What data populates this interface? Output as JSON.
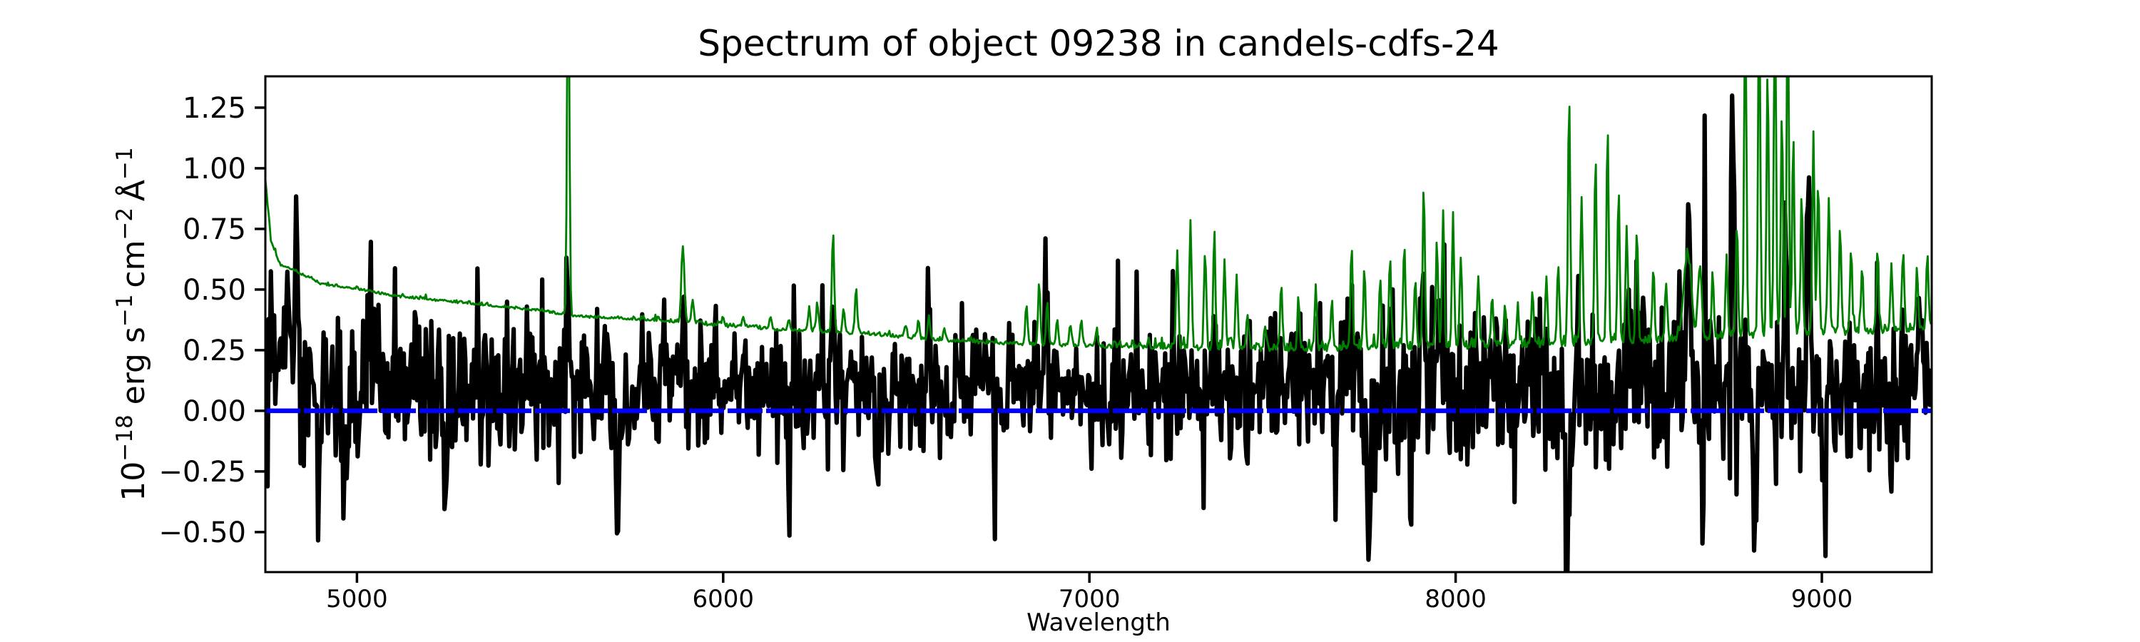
{
  "figure": {
    "background": "#ffffff",
    "frame_color": "#000000"
  },
  "chart_data": {
    "type": "line",
    "title": "Spectrum of object 09238 in candels-cdfs-24",
    "xlabel": "Wavelength",
    "ylabel": "10−18 erg s−1 cm−2 Å−1",
    "ylabel_parts": [
      {
        "text": "10"
      },
      {
        "text": "−18",
        "sup": true
      },
      {
        "text": " erg s"
      },
      {
        "text": "−1",
        "sup": true
      },
      {
        "text": " cm"
      },
      {
        "text": "−2",
        "sup": true
      },
      {
        "text": " Å"
      },
      {
        "text": "−1",
        "sup": true
      }
    ],
    "xlim": [
      4750,
      9300
    ],
    "ylim": [
      -0.665,
      1.379
    ],
    "grid": false,
    "legend": null,
    "x_ticks": [
      {
        "value": 5000,
        "label": "5000"
      },
      {
        "value": 6000,
        "label": "6000"
      },
      {
        "value": 7000,
        "label": "7000"
      },
      {
        "value": 8000,
        "label": "8000"
      },
      {
        "value": 9000,
        "label": "9000"
      }
    ],
    "y_ticks": [
      {
        "value": 1.25,
        "label": "1.25"
      },
      {
        "value": 1.0,
        "label": "1.00"
      },
      {
        "value": 0.75,
        "label": "0.75"
      },
      {
        "value": 0.5,
        "label": "0.50"
      },
      {
        "value": 0.25,
        "label": "0.25"
      },
      {
        "value": 0.0,
        "label": "0.00"
      },
      {
        "value": -0.25,
        "label": "−0.25"
      },
      {
        "value": -0.5,
        "label": "−0.50"
      }
    ],
    "series": [
      {
        "name": "flux-spectrum",
        "color": "#000000",
        "linewidth": 6.2,
        "style": "solid",
        "representation": "noisy-spectrum",
        "sample_step_angstrom": 3,
        "mean_anchors": [
          [
            4750,
            0.13
          ],
          [
            5000,
            0.1
          ],
          [
            5500,
            0.08
          ],
          [
            6000,
            0.07
          ],
          [
            6500,
            0.075
          ],
          [
            7000,
            0.08
          ],
          [
            7500,
            0.085
          ],
          [
            8000,
            0.09
          ],
          [
            8500,
            0.09
          ],
          [
            9000,
            0.09
          ],
          [
            9300,
            0.07
          ]
        ],
        "sigma_anchors": [
          [
            4750,
            0.21
          ],
          [
            4900,
            0.19
          ],
          [
            5100,
            0.17
          ],
          [
            5400,
            0.15
          ],
          [
            5800,
            0.135
          ],
          [
            6200,
            0.125
          ],
          [
            6800,
            0.125
          ],
          [
            7200,
            0.135
          ],
          [
            7600,
            0.15
          ],
          [
            8000,
            0.16
          ],
          [
            8400,
            0.17
          ],
          [
            8800,
            0.18
          ],
          [
            9300,
            0.18
          ]
        ],
        "features": [
          [
            4770,
            0.45,
            4
          ],
          [
            4813,
            0.52,
            4
          ],
          [
            4836,
            0.62,
            4
          ],
          [
            4896,
            -0.46,
            4
          ],
          [
            5037,
            0.66,
            4
          ],
          [
            5100,
            0.45,
            4
          ],
          [
            5240,
            -0.46,
            4
          ],
          [
            5330,
            0.45,
            4
          ],
          [
            5575,
            0.45,
            4
          ],
          [
            5712,
            -0.55,
            4
          ],
          [
            5890,
            0.45,
            4
          ],
          [
            6300,
            0.48,
            4
          ],
          [
            6420,
            -0.4,
            4
          ],
          [
            6560,
            0.45,
            4
          ],
          [
            6880,
            0.42,
            4
          ],
          [
            7340,
            0.45,
            4
          ],
          [
            7762,
            -0.46,
            4
          ],
          [
            7910,
            0.7,
            5
          ],
          [
            7952,
            0.5,
            4
          ],
          [
            8305,
            -0.6,
            4
          ],
          [
            8470,
            0.55,
            4
          ],
          [
            8637,
            0.88,
            6
          ],
          [
            8673,
            -0.42,
            4
          ],
          [
            8756,
            1.22,
            4
          ],
          [
            8817,
            -0.42,
            4
          ],
          [
            8900,
            0.62,
            5
          ],
          [
            8965,
            0.57,
            5
          ],
          [
            9010,
            -0.43,
            4
          ],
          [
            9150,
            0.45,
            4
          ],
          [
            9265,
            0.55,
            4
          ]
        ]
      },
      {
        "name": "noise-spectrum",
        "color": "#008000",
        "linewidth": 2.8,
        "style": "solid",
        "representation": "continuum-plus-sky-lines",
        "sample_step_angstrom": 3,
        "continuum_anchors": [
          [
            4750,
            0.95
          ],
          [
            4765,
            0.7
          ],
          [
            4790,
            0.6
          ],
          [
            4830,
            0.575
          ],
          [
            4900,
            0.52
          ],
          [
            5000,
            0.5
          ],
          [
            5100,
            0.47
          ],
          [
            5200,
            0.455
          ],
          [
            5300,
            0.44
          ],
          [
            5400,
            0.425
          ],
          [
            5500,
            0.41
          ],
          [
            5600,
            0.385
          ],
          [
            5750,
            0.375
          ],
          [
            5900,
            0.36
          ],
          [
            6000,
            0.345
          ],
          [
            6150,
            0.33
          ],
          [
            6300,
            0.32
          ],
          [
            6450,
            0.305
          ],
          [
            6600,
            0.285
          ],
          [
            6800,
            0.27
          ],
          [
            7000,
            0.262
          ],
          [
            7200,
            0.252
          ],
          [
            7400,
            0.247
          ],
          [
            7600,
            0.242
          ],
          [
            7800,
            0.25
          ],
          [
            8000,
            0.255
          ],
          [
            8200,
            0.26
          ],
          [
            8400,
            0.27
          ],
          [
            8600,
            0.285
          ],
          [
            8800,
            0.3
          ],
          [
            9000,
            0.31
          ],
          [
            9150,
            0.315
          ],
          [
            9300,
            0.33
          ]
        ],
        "sky_lines": [
          [
            5577,
            1.65,
            3
          ],
          [
            5890,
            0.31,
            4
          ],
          [
            5917,
            0.09,
            3
          ],
          [
            6000,
            0.035,
            3
          ],
          [
            6055,
            0.045,
            3
          ],
          [
            6130,
            0.045,
            3
          ],
          [
            6180,
            0.04,
            3
          ],
          [
            6235,
            0.1,
            3
          ],
          [
            6257,
            0.12,
            3
          ],
          [
            6300,
            0.42,
            3
          ],
          [
            6329,
            0.1,
            3
          ],
          [
            6363,
            0.19,
            3
          ],
          [
            6498,
            0.05,
            3
          ],
          [
            6533,
            0.07,
            3
          ],
          [
            6562,
            0.09,
            3
          ],
          [
            6604,
            0.05,
            3
          ],
          [
            6828,
            0.17,
            3
          ],
          [
            6863,
            0.26,
            3
          ],
          [
            6885,
            0.18,
            3
          ],
          [
            6912,
            0.11,
            3
          ],
          [
            6948,
            0.09,
            3
          ],
          [
            6978,
            0.11,
            3
          ],
          [
            7020,
            0.07,
            3
          ],
          [
            7240,
            0.41,
            3
          ],
          [
            7276,
            0.53,
            3
          ],
          [
            7316,
            0.41,
            3
          ],
          [
            7341,
            0.47,
            3
          ],
          [
            7369,
            0.36,
            3
          ],
          [
            7402,
            0.29,
            3
          ],
          [
            7432,
            0.13,
            3
          ],
          [
            7480,
            0.1,
            3
          ],
          [
            7524,
            0.27,
            3
          ],
          [
            7571,
            0.21,
            3
          ],
          [
            7618,
            0.25,
            3
          ],
          [
            7662,
            0.19,
            3
          ],
          [
            7716,
            0.43,
            3
          ],
          [
            7751,
            0.33,
            3
          ],
          [
            7794,
            0.29,
            3
          ],
          [
            7821,
            0.37,
            3
          ],
          [
            7860,
            0.43,
            3
          ],
          [
            7890,
            0.29,
            3
          ],
          [
            7913,
            0.67,
            3
          ],
          [
            7949,
            0.43,
            3
          ],
          [
            7966,
            0.56,
            3
          ],
          [
            7993,
            0.53,
            3
          ],
          [
            8014,
            0.37,
            3
          ],
          [
            8062,
            0.29,
            3
          ],
          [
            8100,
            0.21,
            3
          ],
          [
            8135,
            0.17,
            3
          ],
          [
            8170,
            0.15,
            3
          ],
          [
            8210,
            0.23,
            3
          ],
          [
            8248,
            0.29,
            3
          ],
          [
            8280,
            0.33,
            3
          ],
          [
            8310,
            1.02,
            3
          ],
          [
            8344,
            0.6,
            3
          ],
          [
            8382,
            0.74,
            3
          ],
          [
            8415,
            0.9,
            3
          ],
          [
            8445,
            0.62,
            3
          ],
          [
            8467,
            0.47,
            3
          ],
          [
            8495,
            0.47,
            3
          ],
          [
            8540,
            0.3,
            3
          ],
          [
            8575,
            0.24,
            3
          ],
          [
            8633,
            0.35,
            10
          ],
          [
            8667,
            0.3,
            5
          ],
          [
            8702,
            0.27,
            3
          ],
          [
            8740,
            0.33,
            3
          ],
          [
            8768,
            0.47,
            3
          ],
          [
            8791,
            1.45,
            3
          ],
          [
            8829,
            1.45,
            3
          ],
          [
            8852,
            1.1,
            3
          ],
          [
            8872,
            1.45,
            3
          ],
          [
            8891,
            0.92,
            3
          ],
          [
            8907,
            1.45,
            3
          ],
          [
            8922,
            0.82,
            3
          ],
          [
            8945,
            0.57,
            3
          ],
          [
            8977,
            0.8,
            3
          ],
          [
            8990,
            0.6,
            3
          ],
          [
            9019,
            0.55,
            3
          ],
          [
            9050,
            0.44,
            3
          ],
          [
            9080,
            0.34,
            3
          ],
          [
            9110,
            0.26,
            3
          ],
          [
            9152,
            0.34,
            3
          ],
          [
            9190,
            0.26,
            3
          ],
          [
            9222,
            0.32,
            3
          ],
          [
            9260,
            0.24,
            3
          ],
          [
            9288,
            0.32,
            3
          ]
        ],
        "micro_noise": {
          "blue_region": 0.006,
          "mid_region": 0.009,
          "red_region": 0.02,
          "mid_start": 5750,
          "red_start": 7050
        }
      },
      {
        "name": "zero-line",
        "color": "#0000ff",
        "linewidth": 6.5,
        "style": "dashed",
        "dash": [
          49,
          5
        ],
        "y": 0.0
      }
    ]
  }
}
